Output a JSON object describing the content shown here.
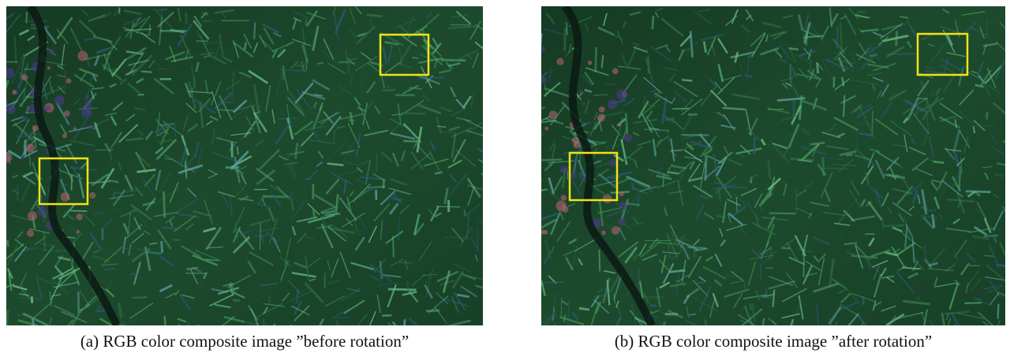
{
  "figure": {
    "panels": [
      {
        "caption": "(a) RGB color composite image ”before rotation”"
      },
      {
        "caption": "(b) RGB color composite image ”after rotation”"
      }
    ]
  }
}
